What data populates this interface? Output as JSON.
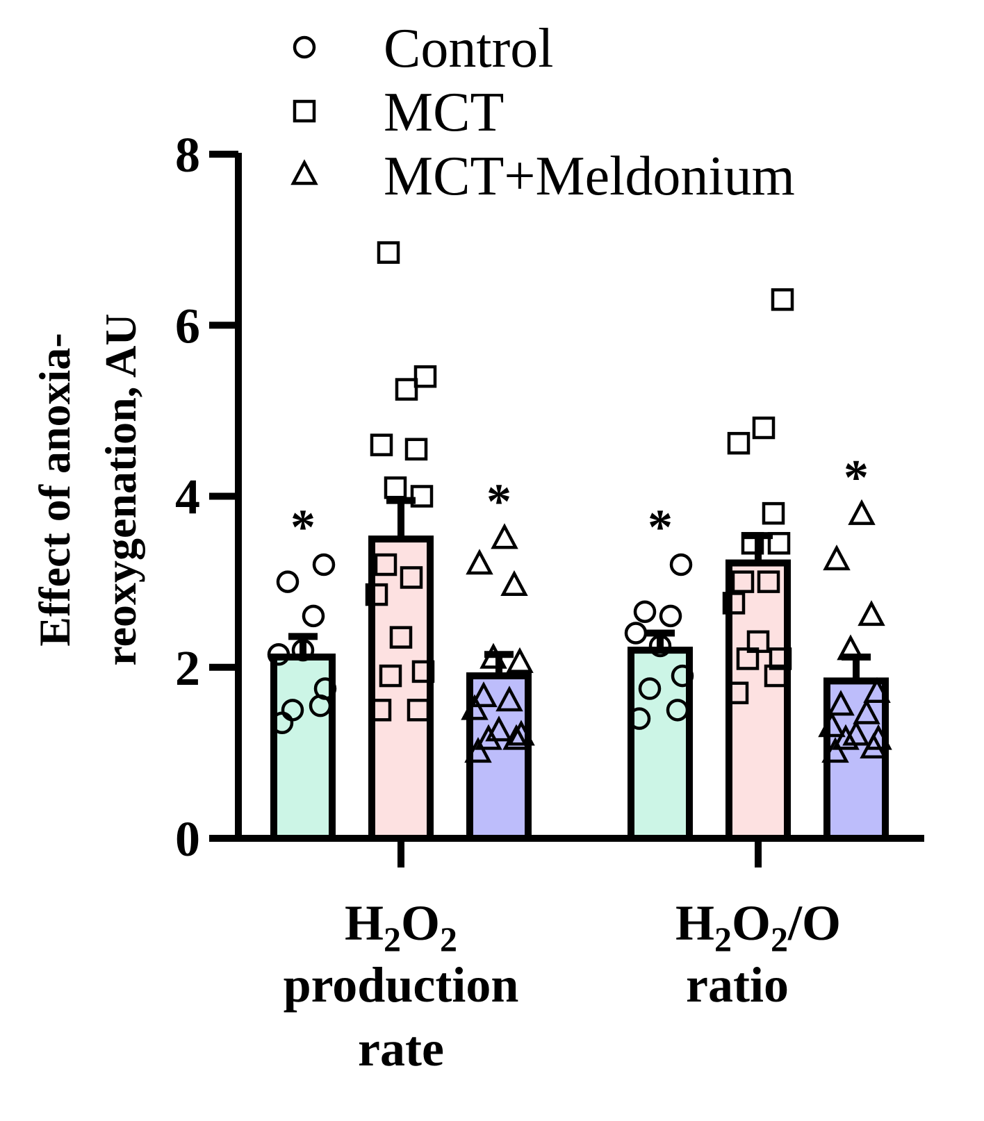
{
  "chart_data": {
    "type": "bar",
    "ylabel_lines": [
      "Effect of anoxia-",
      "reoxygenation, AU"
    ],
    "ylim": [
      0,
      8
    ],
    "yticks": [
      0,
      2,
      4,
      6,
      8
    ],
    "ytick_labels": [
      "0",
      "2",
      "4",
      "6",
      "8"
    ],
    "categories": [
      {
        "main": "H",
        "sub1": "2",
        "mid": "O",
        "sub2": "2",
        "tail": "",
        "extra_lines": [
          "production",
          "rate"
        ]
      },
      {
        "main": "H",
        "sub1": "2",
        "mid": "O",
        "sub2": "2",
        "tail": "/O",
        "extra_lines": [
          "ratio"
        ]
      }
    ],
    "series": [
      {
        "name": "Control",
        "marker": "circle",
        "color": "#ccf5e6",
        "values": [
          2.12,
          2.2
        ],
        "errors": [
          0.24,
          0.2
        ],
        "points": [
          [
            1.35,
            1.55,
            1.5,
            1.75,
            2.2,
            2.15,
            2.6,
            3.0,
            3.2
          ],
          [
            1.4,
            1.5,
            1.75,
            1.9,
            2.25,
            2.4,
            2.6,
            2.65,
            3.2
          ]
        ],
        "significance": [
          "*",
          "*"
        ]
      },
      {
        "name": "MCT",
        "marker": "square",
        "color": "#fde1e1",
        "values": [
          3.5,
          3.22
        ],
        "errors": [
          0.45,
          0.32
        ],
        "points": [
          [
            1.5,
            1.5,
            1.9,
            1.95,
            2.35,
            2.85,
            3.05,
            3.2,
            4.0,
            4.1,
            4.55,
            4.6,
            5.25,
            5.4,
            6.85
          ],
          [
            1.7,
            1.9,
            2.1,
            2.1,
            2.3,
            2.75,
            3.0,
            3.0,
            3.45,
            3.45,
            3.8,
            4.62,
            4.8,
            6.3
          ]
        ],
        "significance": [
          "",
          ""
        ]
      },
      {
        "name": "MCT+Meldonium",
        "marker": "triangle",
        "color": "#bdbdfb",
        "values": [
          1.9,
          1.84
        ],
        "errors": [
          0.25,
          0.28
        ],
        "points": [
          [
            1.0,
            1.15,
            1.15,
            1.2,
            1.25,
            1.5,
            1.6,
            1.65,
            2.05,
            2.1,
            2.95,
            3.2,
            3.5
          ],
          [
            1.0,
            1.05,
            1.15,
            1.15,
            1.2,
            1.3,
            1.45,
            1.55,
            1.7,
            2.2,
            2.6,
            3.25,
            3.78
          ]
        ],
        "significance": [
          "*",
          "*"
        ]
      }
    ],
    "legend_position": "top"
  }
}
